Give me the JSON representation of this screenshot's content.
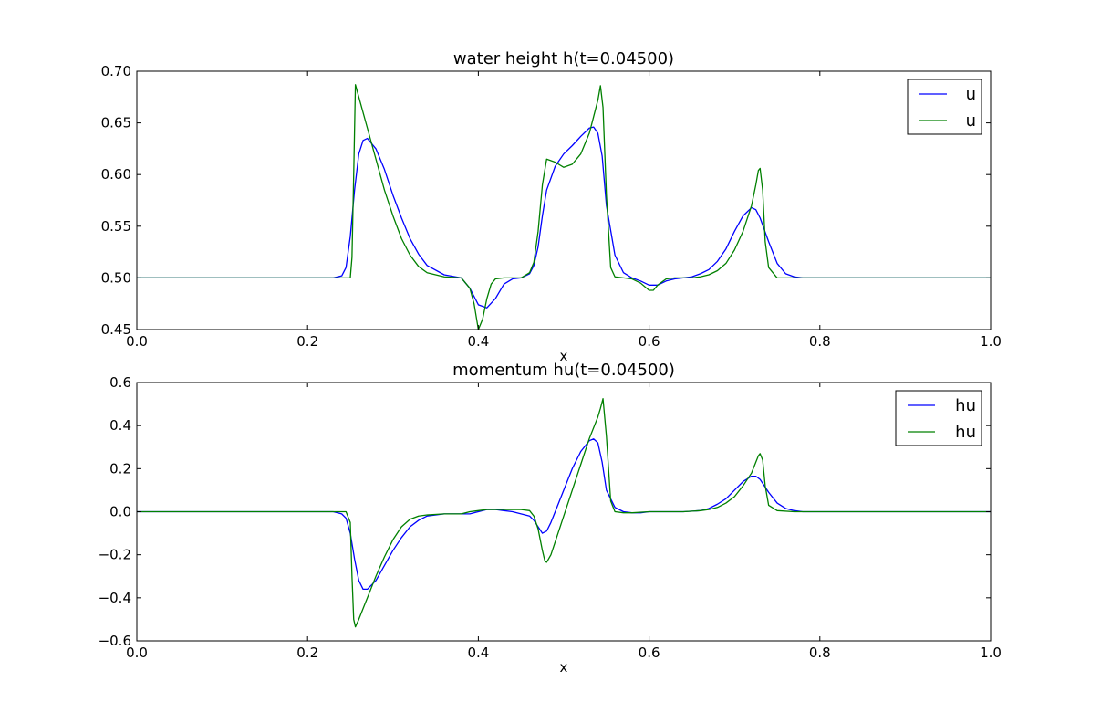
{
  "chart_data": [
    {
      "type": "line",
      "title": "water height h(t=0.04500)",
      "xlabel": "x",
      "ylabel": "",
      "xlim": [
        0.0,
        1.0
      ],
      "ylim": [
        0.45,
        0.7
      ],
      "xticks": [
        "0.0",
        "0.2",
        "0.4",
        "0.6",
        "0.8",
        "1.0"
      ],
      "yticks": [
        "0.45",
        "0.50",
        "0.55",
        "0.60",
        "0.65",
        "0.70"
      ],
      "grid": false,
      "legend_position": "top-right",
      "series": [
        {
          "name": "u",
          "color": "#0000ff",
          "x": [
            0.0,
            0.2,
            0.23,
            0.24,
            0.245,
            0.25,
            0.255,
            0.26,
            0.265,
            0.27,
            0.28,
            0.29,
            0.3,
            0.31,
            0.32,
            0.33,
            0.34,
            0.36,
            0.38,
            0.39,
            0.4,
            0.41,
            0.42,
            0.43,
            0.44,
            0.45,
            0.46,
            0.465,
            0.47,
            0.475,
            0.48,
            0.49,
            0.5,
            0.51,
            0.52,
            0.53,
            0.535,
            0.54,
            0.545,
            0.55,
            0.56,
            0.57,
            0.58,
            0.59,
            0.6,
            0.61,
            0.62,
            0.63,
            0.64,
            0.65,
            0.66,
            0.67,
            0.68,
            0.69,
            0.7,
            0.71,
            0.72,
            0.725,
            0.73,
            0.74,
            0.75,
            0.76,
            0.77,
            0.78,
            0.8,
            1.0
          ],
          "y": [
            0.5,
            0.5,
            0.5,
            0.502,
            0.51,
            0.54,
            0.585,
            0.62,
            0.633,
            0.635,
            0.625,
            0.605,
            0.58,
            0.558,
            0.538,
            0.523,
            0.512,
            0.503,
            0.5,
            0.49,
            0.474,
            0.471,
            0.48,
            0.494,
            0.499,
            0.5,
            0.504,
            0.512,
            0.53,
            0.56,
            0.585,
            0.608,
            0.62,
            0.628,
            0.637,
            0.645,
            0.646,
            0.64,
            0.618,
            0.57,
            0.522,
            0.505,
            0.5,
            0.497,
            0.493,
            0.493,
            0.497,
            0.499,
            0.5,
            0.501,
            0.504,
            0.508,
            0.516,
            0.528,
            0.545,
            0.56,
            0.568,
            0.566,
            0.558,
            0.535,
            0.514,
            0.504,
            0.501,
            0.5,
            0.5,
            0.5
          ]
        },
        {
          "name": "u",
          "color": "#008000",
          "x": [
            0.0,
            0.2,
            0.25,
            0.252,
            0.254,
            0.256,
            0.26,
            0.27,
            0.28,
            0.29,
            0.3,
            0.31,
            0.32,
            0.33,
            0.34,
            0.36,
            0.38,
            0.39,
            0.395,
            0.4,
            0.405,
            0.41,
            0.415,
            0.42,
            0.43,
            0.44,
            0.45,
            0.46,
            0.465,
            0.47,
            0.475,
            0.48,
            0.49,
            0.5,
            0.51,
            0.52,
            0.53,
            0.535,
            0.54,
            0.543,
            0.546,
            0.55,
            0.555,
            0.56,
            0.57,
            0.58,
            0.59,
            0.6,
            0.605,
            0.61,
            0.62,
            0.63,
            0.64,
            0.65,
            0.66,
            0.67,
            0.68,
            0.69,
            0.7,
            0.71,
            0.72,
            0.725,
            0.728,
            0.73,
            0.733,
            0.736,
            0.74,
            0.75,
            0.77,
            0.8,
            1.0
          ],
          "y": [
            0.5,
            0.5,
            0.5,
            0.52,
            0.6,
            0.687,
            0.675,
            0.645,
            0.615,
            0.585,
            0.56,
            0.538,
            0.522,
            0.511,
            0.505,
            0.501,
            0.5,
            0.49,
            0.475,
            0.45,
            0.46,
            0.48,
            0.494,
            0.499,
            0.5,
            0.5,
            0.5,
            0.505,
            0.515,
            0.545,
            0.59,
            0.615,
            0.612,
            0.607,
            0.61,
            0.62,
            0.64,
            0.656,
            0.672,
            0.686,
            0.665,
            0.58,
            0.51,
            0.501,
            0.5,
            0.499,
            0.495,
            0.488,
            0.488,
            0.493,
            0.499,
            0.5,
            0.5,
            0.5,
            0.501,
            0.503,
            0.507,
            0.514,
            0.527,
            0.545,
            0.57,
            0.59,
            0.604,
            0.606,
            0.585,
            0.535,
            0.51,
            0.5,
            0.5,
            0.5,
            0.5
          ]
        }
      ]
    },
    {
      "type": "line",
      "title": "momentum hu(t=0.04500)",
      "xlabel": "x",
      "ylabel": "",
      "xlim": [
        0.0,
        1.0
      ],
      "ylim": [
        -0.6,
        0.6
      ],
      "xticks": [
        "0.0",
        "0.2",
        "0.4",
        "0.6",
        "0.8",
        "1.0"
      ],
      "yticks": [
        "−0.6",
        "−0.4",
        "−0.2",
        "0.0",
        "0.2",
        "0.4",
        "0.6"
      ],
      "grid": false,
      "legend_position": "top-right",
      "series": [
        {
          "name": "hu",
          "color": "#0000ff",
          "x": [
            0.0,
            0.2,
            0.23,
            0.24,
            0.245,
            0.25,
            0.255,
            0.26,
            0.265,
            0.27,
            0.28,
            0.29,
            0.3,
            0.31,
            0.32,
            0.33,
            0.34,
            0.36,
            0.38,
            0.39,
            0.4,
            0.41,
            0.42,
            0.43,
            0.44,
            0.45,
            0.46,
            0.465,
            0.47,
            0.475,
            0.48,
            0.485,
            0.49,
            0.5,
            0.51,
            0.52,
            0.53,
            0.535,
            0.54,
            0.545,
            0.55,
            0.56,
            0.57,
            0.58,
            0.59,
            0.6,
            0.62,
            0.64,
            0.66,
            0.67,
            0.68,
            0.69,
            0.7,
            0.71,
            0.72,
            0.725,
            0.73,
            0.74,
            0.75,
            0.76,
            0.77,
            0.78,
            0.8,
            1.0
          ],
          "y": [
            0.0,
            0.0,
            0.0,
            -0.01,
            -0.03,
            -0.1,
            -0.22,
            -0.32,
            -0.36,
            -0.36,
            -0.32,
            -0.25,
            -0.18,
            -0.12,
            -0.07,
            -0.04,
            -0.02,
            -0.01,
            -0.01,
            -0.01,
            0.0,
            0.01,
            0.01,
            0.005,
            0.0,
            -0.01,
            -0.02,
            -0.04,
            -0.07,
            -0.1,
            -0.09,
            -0.05,
            0.0,
            0.1,
            0.2,
            0.28,
            0.33,
            0.338,
            0.32,
            0.23,
            0.1,
            0.02,
            0.0,
            -0.005,
            -0.005,
            0.0,
            0.0,
            0.0,
            0.005,
            0.015,
            0.035,
            0.06,
            0.1,
            0.14,
            0.165,
            0.165,
            0.15,
            0.09,
            0.04,
            0.015,
            0.005,
            0.0,
            0.0,
            0.0
          ]
        },
        {
          "name": "hu",
          "color": "#008000",
          "x": [
            0.0,
            0.2,
            0.245,
            0.25,
            0.252,
            0.254,
            0.256,
            0.26,
            0.27,
            0.28,
            0.29,
            0.3,
            0.31,
            0.32,
            0.33,
            0.34,
            0.36,
            0.38,
            0.39,
            0.4,
            0.41,
            0.42,
            0.43,
            0.44,
            0.45,
            0.46,
            0.465,
            0.47,
            0.475,
            0.478,
            0.48,
            0.485,
            0.49,
            0.5,
            0.51,
            0.52,
            0.53,
            0.54,
            0.543,
            0.546,
            0.55,
            0.555,
            0.56,
            0.57,
            0.58,
            0.6,
            0.62,
            0.64,
            0.66,
            0.67,
            0.68,
            0.69,
            0.7,
            0.71,
            0.72,
            0.725,
            0.728,
            0.73,
            0.733,
            0.736,
            0.74,
            0.75,
            0.77,
            0.8,
            1.0
          ],
          "y": [
            0.0,
            0.0,
            0.0,
            -0.05,
            -0.3,
            -0.5,
            -0.535,
            -0.5,
            -0.4,
            -0.3,
            -0.21,
            -0.13,
            -0.07,
            -0.035,
            -0.02,
            -0.015,
            -0.01,
            -0.01,
            0.0,
            0.005,
            0.01,
            0.01,
            0.01,
            0.01,
            0.01,
            0.005,
            -0.02,
            -0.08,
            -0.18,
            -0.23,
            -0.235,
            -0.2,
            -0.14,
            -0.02,
            0.1,
            0.22,
            0.34,
            0.44,
            0.48,
            0.525,
            0.35,
            0.05,
            0.0,
            -0.005,
            -0.005,
            0.0,
            0.0,
            0.0,
            0.005,
            0.01,
            0.02,
            0.04,
            0.07,
            0.12,
            0.18,
            0.23,
            0.26,
            0.27,
            0.24,
            0.12,
            0.03,
            0.005,
            0.0,
            0.0,
            0.0
          ]
        }
      ]
    }
  ]
}
